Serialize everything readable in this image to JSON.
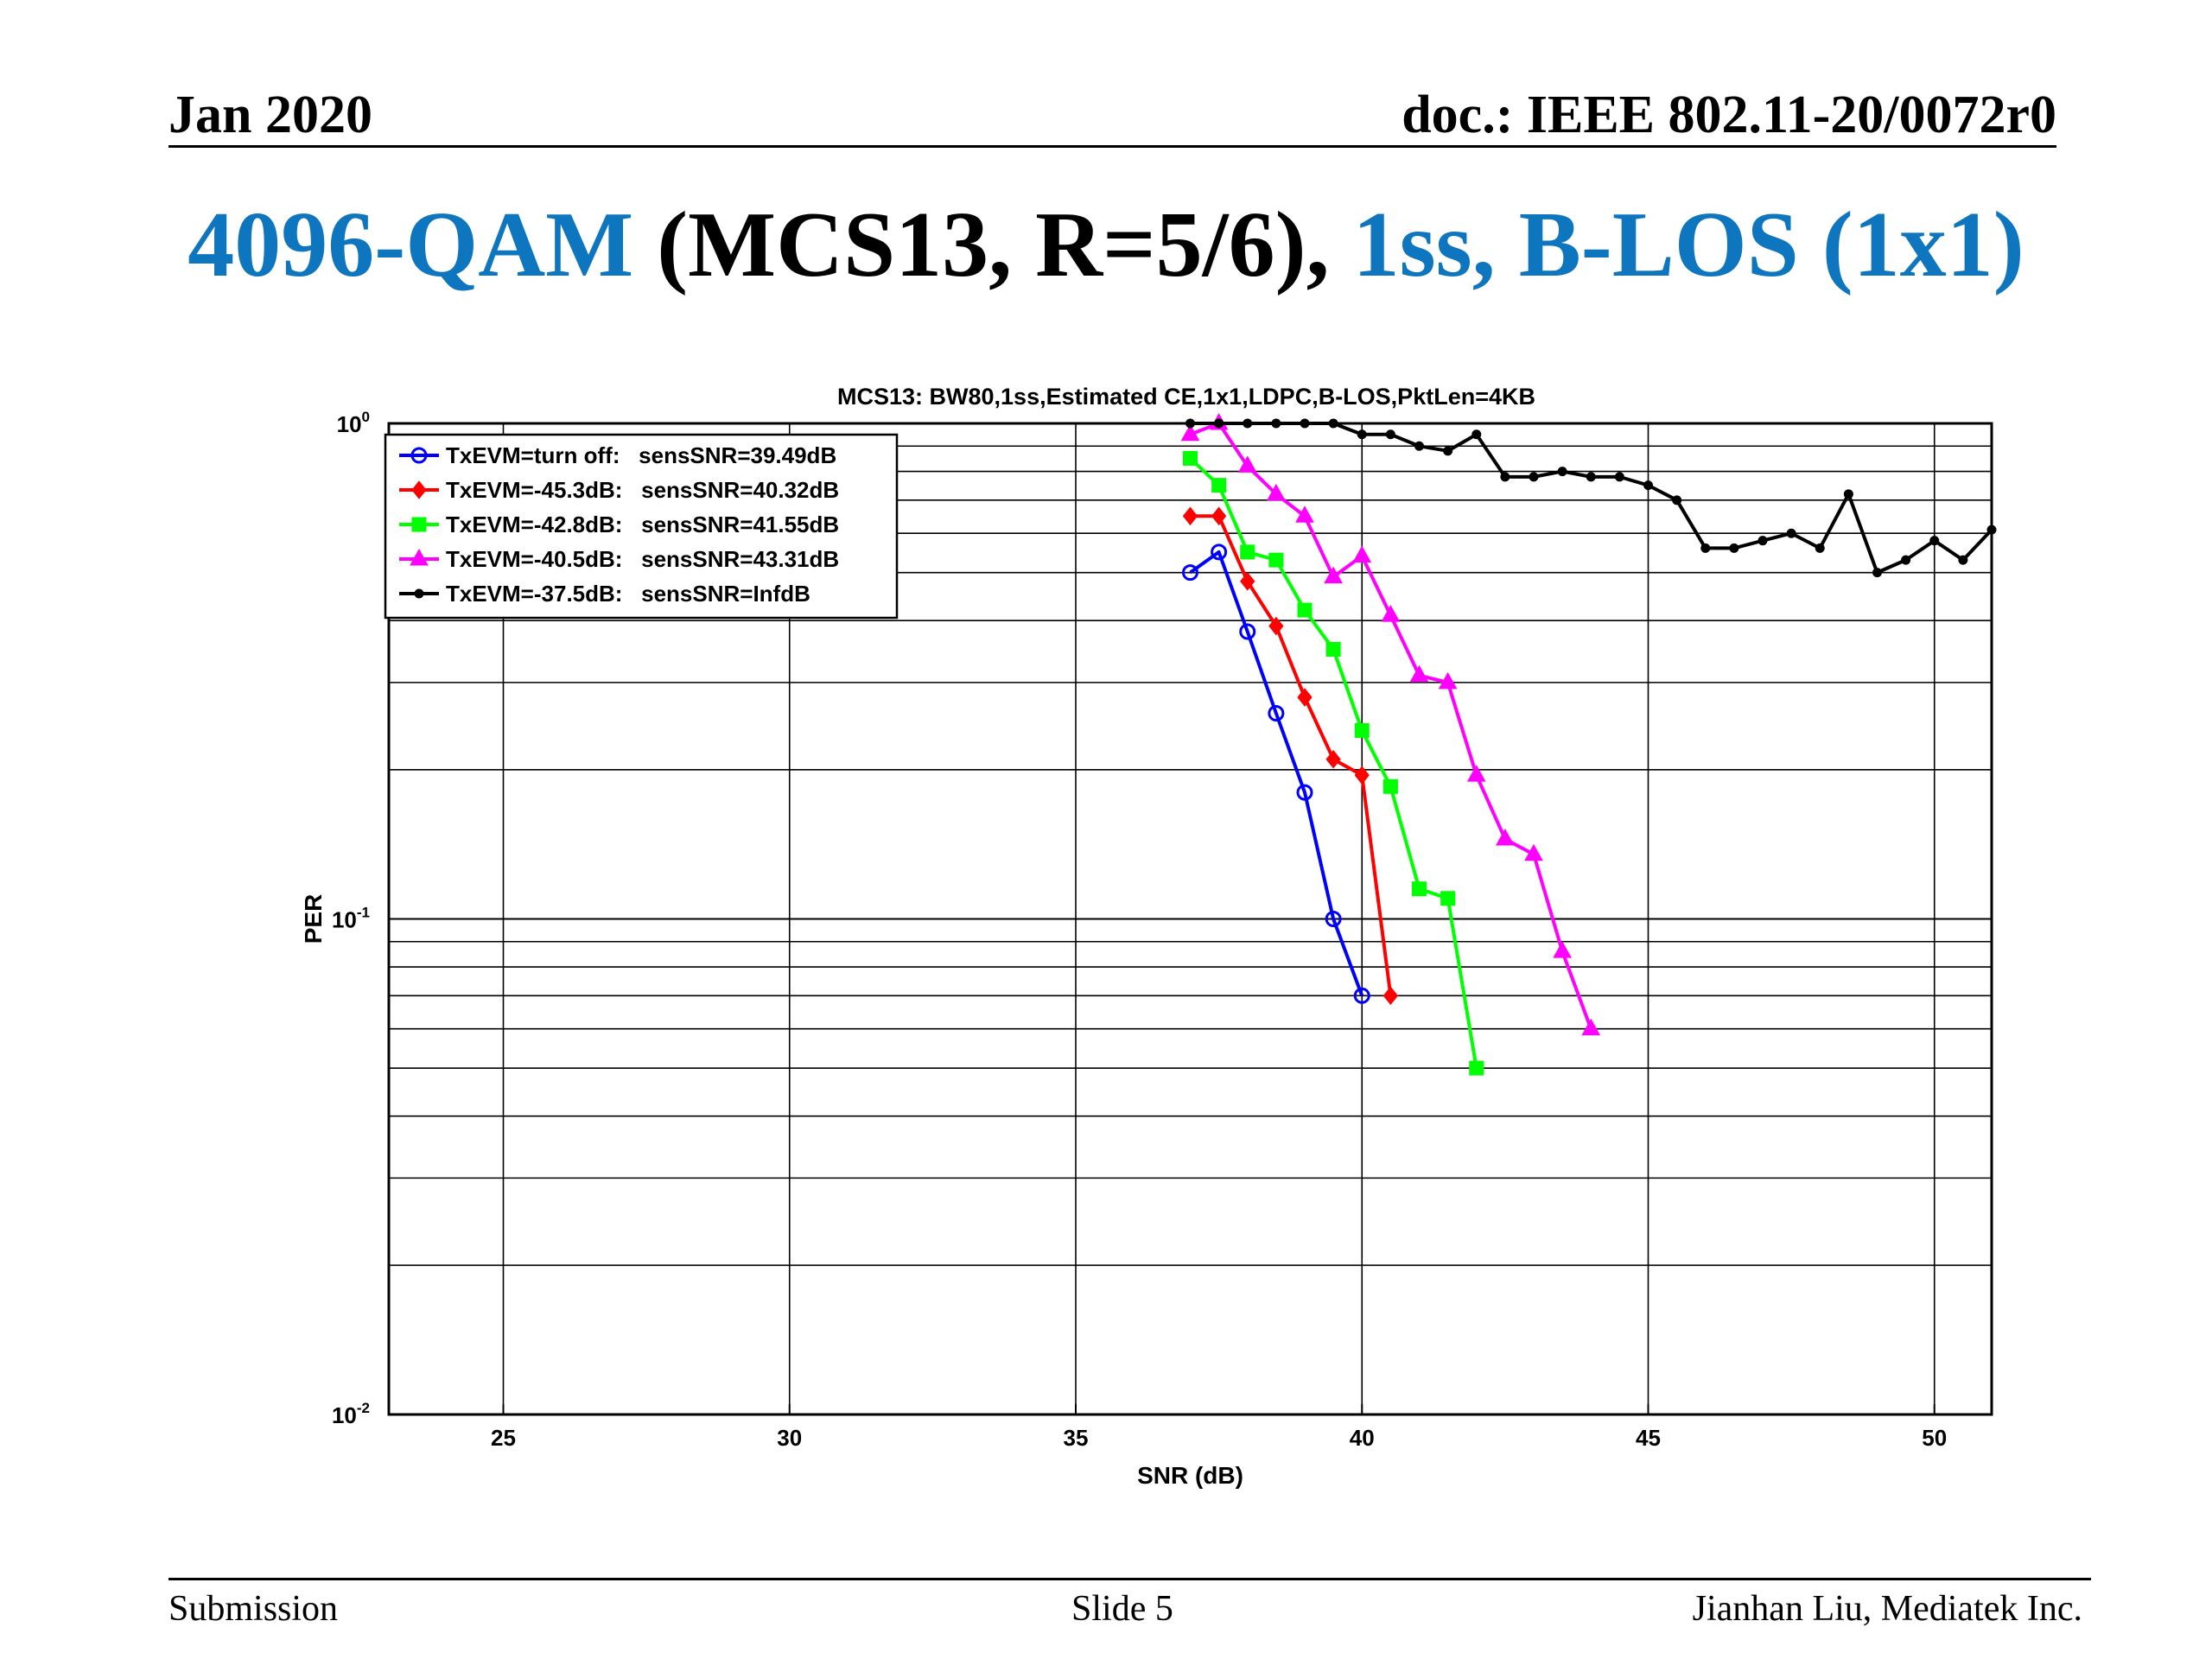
{
  "header": {
    "left": "Jan 2020",
    "right": "doc.: IEEE 802.11-20/0072r0"
  },
  "slide_title": {
    "part1": "4096-QAM",
    "part2": " (MCS13, R=5/6), ",
    "part3": "1ss, B-LOS (1x1)",
    "accent_color": "#0e75bf"
  },
  "footer": {
    "left": "Submission",
    "center": "Slide 5",
    "right": "Jianhan Liu, Mediatek Inc."
  },
  "chart_data": {
    "type": "line",
    "title": "MCS13: BW80,1ss,Estimated CE,1x1,LDPC,B-LOS,PktLen=4KB",
    "xlabel": "SNR (dB)",
    "ylabel": "PER",
    "xlim": [
      23,
      51
    ],
    "ylim": [
      0.01,
      1
    ],
    "yscale": "log",
    "xticks": [
      25,
      30,
      35,
      40,
      45,
      50
    ],
    "yticks": [
      {
        "value": 1,
        "base": "10",
        "exp": "0"
      },
      {
        "value": 0.1,
        "base": "10",
        "exp": "-1"
      },
      {
        "value": 0.01,
        "base": "10",
        "exp": "-2"
      }
    ],
    "grid": true,
    "legend_position": "top-left",
    "series": [
      {
        "name": "TxEVM=turn off:   sensSNR=39.49dB",
        "color": "#0000ff",
        "marker": "circle",
        "x": [
          37,
          37.5,
          38,
          38.5,
          39,
          39.5,
          40
        ],
        "y": [
          0.5,
          0.55,
          0.38,
          0.26,
          0.18,
          0.1,
          0.07
        ]
      },
      {
        "name": "TxEVM=-45.3dB:   sensSNR=40.32dB",
        "color": "#ff0000",
        "marker": "diamond",
        "x": [
          37,
          37.5,
          38,
          38.5,
          39,
          39.5,
          40,
          40.5
        ],
        "y": [
          0.65,
          0.65,
          0.48,
          0.39,
          0.28,
          0.21,
          0.195,
          0.07
        ]
      },
      {
        "name": "TxEVM=-42.8dB:   sensSNR=41.55dB",
        "color": "#00ff00",
        "marker": "square",
        "x": [
          37,
          37.5,
          38,
          38.5,
          39,
          39.5,
          40,
          40.5,
          41,
          41.5,
          42
        ],
        "y": [
          0.85,
          0.75,
          0.55,
          0.53,
          0.42,
          0.35,
          0.24,
          0.185,
          0.115,
          0.11,
          0.05
        ]
      },
      {
        "name": "TxEVM=-40.5dB:   sensSNR=43.31dB",
        "color": "#ff00ff",
        "marker": "triangle",
        "x": [
          37,
          37.5,
          38,
          38.5,
          39,
          39.5,
          40,
          40.5,
          41,
          41.5,
          42,
          42.5,
          43,
          43.5,
          44
        ],
        "y": [
          0.95,
          1.0,
          0.82,
          0.72,
          0.65,
          0.49,
          0.54,
          0.41,
          0.31,
          0.3,
          0.195,
          0.145,
          0.135,
          0.086,
          0.06
        ]
      },
      {
        "name": "TxEVM=-37.5dB:   sensSNR=InfdB",
        "color": "#000000",
        "marker": "point",
        "x": [
          37,
          37.5,
          38,
          38.5,
          39,
          39.5,
          40,
          40.5,
          41,
          41.5,
          42,
          42.5,
          43,
          43.5,
          44,
          44.5,
          45,
          45.5,
          46,
          46.5,
          47,
          47.5,
          48,
          48.5,
          49,
          49.5,
          50,
          50.5,
          51
        ],
        "y": [
          1.0,
          1.0,
          1.0,
          1.0,
          1.0,
          1.0,
          0.95,
          0.95,
          0.9,
          0.88,
          0.95,
          0.78,
          0.78,
          0.8,
          0.78,
          0.78,
          0.75,
          0.7,
          0.56,
          0.56,
          0.58,
          0.6,
          0.56,
          0.72,
          0.5,
          0.53,
          0.58,
          0.53,
          0.61
        ]
      }
    ]
  }
}
